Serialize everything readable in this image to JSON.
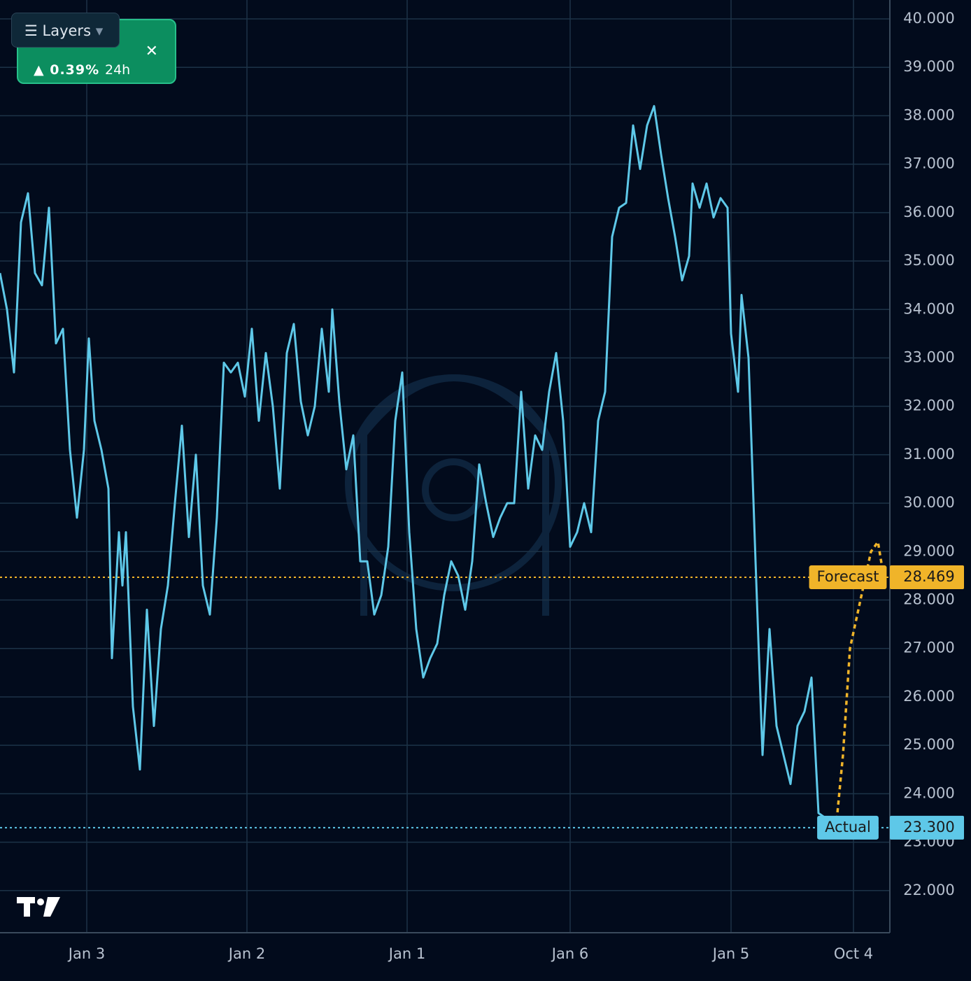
{
  "chart_data": {
    "type": "line",
    "widget": {
      "button": "Layers",
      "change": "0.39%",
      "period": "24h"
    },
    "series": [
      {
        "name": "Actual",
        "color": "#5ec8e8",
        "x": [
          0,
          1,
          2,
          3,
          4,
          5,
          6,
          7,
          8,
          9,
          10,
          11,
          12,
          12.7,
          13.5,
          14.5,
          15.5,
          16,
          17,
          17.5,
          18,
          19,
          20,
          21,
          22,
          23,
          24,
          25,
          26,
          27,
          28,
          29,
          30,
          31,
          32,
          33,
          34,
          35,
          36,
          37,
          38,
          39,
          40,
          41,
          42,
          43,
          44,
          45,
          46,
          47,
          47.5,
          48.5,
          49.5,
          50.5,
          51.5,
          52.5,
          53.5,
          54.5,
          55.5,
          56.5,
          57.5,
          58.5,
          59.5,
          60.5,
          61.5,
          62.5,
          63.5,
          64.5,
          65.5,
          66.5,
          67.5,
          68.5,
          69.5,
          70.5,
          71.5,
          72.5,
          73.5,
          74.5,
          75.5,
          76.5,
          77.5,
          78.5,
          79.5,
          80.5,
          81.5,
          82.5,
          83.5,
          84.5,
          85.5,
          86.5,
          87.5,
          88.5,
          89.5,
          90.5,
          91.5,
          92.5,
          93.5,
          94.5,
          95.5,
          96.5,
          97.5,
          98.5,
          99,
          100,
          101,
          102,
          103,
          104,
          104.5,
          105.5,
          106,
          107,
          108,
          109,
          110,
          111,
          112,
          113,
          114,
          115,
          116,
          117,
          118,
          119,
          119.5
        ],
        "values": [
          34.75,
          34.0,
          32.7,
          35.8,
          36.4,
          34.75,
          34.5,
          36.1,
          33.3,
          33.6,
          31.1,
          29.7,
          31.1,
          33.4,
          31.7,
          31.1,
          30.3,
          26.8,
          29.4,
          28.3,
          29.4,
          25.8,
          24.5,
          27.8,
          25.4,
          27.4,
          28.3,
          30.0,
          31.6,
          29.3,
          31.0,
          28.3,
          27.7,
          29.7,
          32.9,
          32.7,
          32.9,
          32.2,
          33.6,
          31.7,
          33.1,
          32.0,
          30.3,
          33.1,
          33.7,
          32.1,
          31.4,
          32.0,
          33.6,
          32.3,
          34.0,
          32.1,
          30.7,
          31.4,
          28.8,
          28.8,
          27.7,
          28.1,
          29.1,
          31.7,
          32.7,
          29.4,
          27.4,
          26.4,
          26.8,
          27.1,
          28.1,
          28.8,
          28.5,
          27.8,
          28.8,
          30.8,
          30.0,
          29.3,
          29.7,
          30.0,
          30.0,
          32.3,
          30.3,
          31.4,
          31.1,
          32.3,
          33.1,
          31.7,
          29.1,
          29.4,
          30.0,
          29.4,
          31.7,
          32.3,
          35.5,
          36.1,
          36.2,
          37.8,
          36.9,
          37.8,
          38.2,
          37.2,
          36.3,
          35.5,
          34.6,
          35.1,
          36.6,
          36.1,
          36.6,
          35.9,
          36.3,
          36.1,
          33.5,
          32.3,
          34.3,
          33.0,
          28.8,
          24.8,
          27.4,
          25.4,
          24.8,
          24.2,
          25.4,
          25.7,
          26.4,
          23.6,
          23.5,
          23.3,
          23.3
        ]
      },
      {
        "name": "Forecast",
        "color": "#f0b429",
        "dashed": true,
        "x": [
          119.5,
          120.5,
          121.5,
          123,
          124.5,
          125.5,
          126.3
        ],
        "values": [
          23.3,
          24.8,
          27.0,
          28.0,
          29.0,
          29.2,
          28.5
        ]
      }
    ],
    "reference_lines": [
      {
        "label": "Forecast",
        "value": 28.469,
        "value_label": "28.469",
        "color": "#f0b429"
      },
      {
        "label": "Actual",
        "value": 23.3,
        "value_label": "23.300",
        "color": "#5ec8e8"
      }
    ],
    "xlim": [
      0,
      127.2
    ],
    "ylim": [
      21.13,
      40.39
    ],
    "xticks": [
      {
        "value": 12.4,
        "label": "Jan 3"
      },
      {
        "value": 35.3,
        "label": "Jan 2"
      },
      {
        "value": 58.2,
        "label": "Jan 1"
      },
      {
        "value": 81.5,
        "label": "Jan 6"
      },
      {
        "value": 104.5,
        "label": "Jan 5"
      },
      {
        "value": 122,
        "label": "Oct 4"
      }
    ],
    "yticks": [
      {
        "value": 22,
        "label": "22.000"
      },
      {
        "value": 23,
        "label": "23.000"
      },
      {
        "value": 24,
        "label": "24.000"
      },
      {
        "value": 25,
        "label": "25.000"
      },
      {
        "value": 26,
        "label": "26.000"
      },
      {
        "value": 27,
        "label": "27.000"
      },
      {
        "value": 28,
        "label": "28.000"
      },
      {
        "value": 29,
        "label": "29.000"
      },
      {
        "value": 30,
        "label": "30.000"
      },
      {
        "value": 31,
        "label": "31.000"
      },
      {
        "value": 32,
        "label": "32.000"
      },
      {
        "value": 33,
        "label": "33.000"
      },
      {
        "value": 34,
        "label": "34.000"
      },
      {
        "value": 35,
        "label": "35.000"
      },
      {
        "value": 36,
        "label": "36.000"
      },
      {
        "value": 37,
        "label": "37.000"
      },
      {
        "value": 38,
        "label": "38.000"
      },
      {
        "value": 39,
        "label": "39.000"
      },
      {
        "value": 40,
        "label": "40.000"
      }
    ],
    "grid": true
  }
}
